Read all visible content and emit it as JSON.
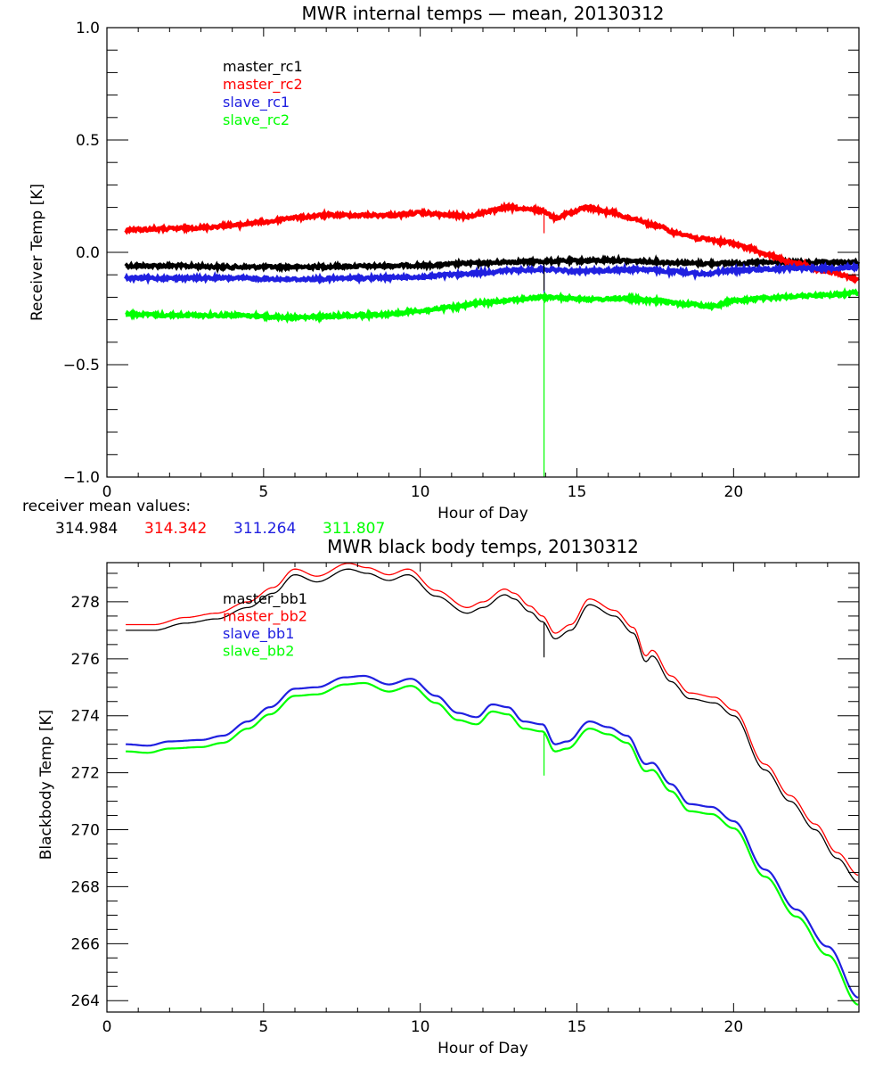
{
  "chart_data": [
    {
      "type": "line",
      "title": "MWR internal temps — mean, 20130312",
      "xlabel": "Hour of Day",
      "ylabel": "Receiver Temp [K]",
      "xlim": [
        0,
        24
      ],
      "ylim": [
        -1.0,
        1.0
      ],
      "xticks": [
        0,
        5,
        10,
        15,
        20
      ],
      "xtick_labels": [
        "0",
        "5",
        "10",
        "15",
        "20"
      ],
      "yticks": [
        1.0,
        0.5,
        0.0,
        -0.5,
        -1.0
      ],
      "ytick_labels": [
        "1.0",
        "0.5",
        "0.0",
        "−0.5",
        "−1.0"
      ],
      "x_minor_step": 1,
      "y_minor_step": 0.1,
      "grid": false,
      "legend_position": "top-left",
      "series": [
        {
          "name": "master_rc1",
          "color": "#000000",
          "noisy": true,
          "x": [
            0.6,
            2,
            4,
            6,
            8,
            10,
            12,
            13,
            14,
            15,
            16,
            17,
            18,
            19,
            20,
            21,
            22,
            23,
            24
          ],
          "y": [
            -0.06,
            -0.06,
            -0.065,
            -0.065,
            -0.062,
            -0.058,
            -0.048,
            -0.042,
            -0.04,
            -0.038,
            -0.035,
            -0.04,
            -0.045,
            -0.05,
            -0.048,
            -0.045,
            -0.045,
            -0.045,
            -0.045
          ]
        },
        {
          "name": "master_rc2",
          "color": "#ff0000",
          "noisy": true,
          "x": [
            0.6,
            2,
            3,
            4,
            5,
            6,
            7,
            8,
            9,
            10,
            11,
            11.5,
            12.3,
            12.8,
            13.5,
            13.9,
            14.3,
            14.8,
            15.3,
            16,
            16.8,
            17.5,
            18.2,
            19,
            19.8,
            20.5,
            21,
            22,
            23,
            24
          ],
          "y": [
            0.1,
            0.105,
            0.11,
            0.12,
            0.135,
            0.155,
            0.165,
            0.165,
            0.165,
            0.175,
            0.165,
            0.16,
            0.185,
            0.2,
            0.19,
            0.185,
            0.155,
            0.175,
            0.2,
            0.18,
            0.15,
            0.12,
            0.085,
            0.06,
            0.045,
            0.02,
            -0.01,
            -0.05,
            -0.085,
            -0.12
          ]
        },
        {
          "name": "slave_rc1",
          "color": "#2020e0",
          "noisy": true,
          "x": [
            0.6,
            2,
            4,
            6,
            8,
            10,
            11,
            12,
            13,
            14,
            15,
            16,
            17,
            18,
            19,
            20,
            21,
            22,
            23,
            24
          ],
          "y": [
            -0.115,
            -0.115,
            -0.115,
            -0.12,
            -0.115,
            -0.11,
            -0.1,
            -0.09,
            -0.08,
            -0.075,
            -0.085,
            -0.08,
            -0.075,
            -0.085,
            -0.095,
            -0.08,
            -0.075,
            -0.07,
            -0.07,
            -0.065
          ]
        },
        {
          "name": "slave_rc2",
          "color": "#00ff00",
          "noisy": true,
          "x": [
            0.6,
            2,
            4,
            6,
            8,
            9,
            10,
            11,
            12,
            13,
            14,
            15,
            15.5,
            16.5,
            17.5,
            18.5,
            19.3,
            20,
            21,
            22,
            23,
            24
          ],
          "y": [
            -0.275,
            -0.28,
            -0.28,
            -0.29,
            -0.28,
            -0.275,
            -0.26,
            -0.245,
            -0.225,
            -0.21,
            -0.2,
            -0.205,
            -0.21,
            -0.205,
            -0.215,
            -0.23,
            -0.24,
            -0.215,
            -0.205,
            -0.195,
            -0.19,
            -0.18
          ]
        }
      ],
      "spikes": [
        {
          "series": "slave_rc2",
          "x": 13.95,
          "to": -1.0,
          "color": "#00ff00"
        },
        {
          "series": "slave_rc1",
          "x": 13.95,
          "to": -0.18,
          "color": "#2020e0"
        },
        {
          "series": "master_rc1",
          "x": 13.95,
          "to": -0.17,
          "color": "#000000"
        },
        {
          "series": "master_rc2",
          "x": 13.95,
          "to": 0.085,
          "color": "#ff0000"
        }
      ],
      "annotation": {
        "label": "receiver mean values:",
        "values": [
          {
            "text": "314.984",
            "color": "#000000"
          },
          {
            "text": "314.342",
            "color": "#ff0000"
          },
          {
            "text": "311.264",
            "color": "#2020e0"
          },
          {
            "text": "311.807",
            "color": "#00ff00"
          }
        ]
      }
    },
    {
      "type": "line",
      "title": "MWR black body temps, 20130312",
      "xlabel": "Hour of Day",
      "ylabel": "Blackbody Temp [K]",
      "xlim": [
        0,
        24
      ],
      "ylim": [
        263.6,
        279.375
      ],
      "xticks": [
        0,
        5,
        10,
        15,
        20
      ],
      "xtick_labels": [
        "0",
        "5",
        "10",
        "15",
        "20"
      ],
      "yticks": [
        264,
        266,
        268,
        270,
        272,
        274,
        276,
        278
      ],
      "ytick_labels": [
        "264",
        "266",
        "268",
        "270",
        "272",
        "274",
        "276",
        "278"
      ],
      "x_minor_step": 1,
      "y_minor_step": 0.5,
      "grid": false,
      "legend_position": "top-left",
      "series": [
        {
          "name": "master_bb1",
          "color": "#000000",
          "x": [
            0.6,
            1.5,
            2.5,
            3.5,
            4.5,
            5.3,
            6,
            6.7,
            7.7,
            8.3,
            9.0,
            9.6,
            10.5,
            11.5,
            12,
            12.7,
            13.0,
            13.5,
            13.9,
            14.3,
            14.8,
            15.4,
            16.2,
            16.8,
            17.2,
            17.4,
            18.0,
            18.6,
            19.4,
            20.0,
            21.0,
            21.8,
            22.6,
            23.3,
            24
          ],
          "y": [
            277.0,
            277.0,
            277.25,
            277.4,
            277.8,
            278.3,
            278.95,
            278.7,
            279.15,
            279.0,
            278.75,
            278.95,
            278.2,
            277.6,
            277.8,
            278.25,
            278.1,
            277.65,
            277.3,
            276.7,
            277.0,
            277.9,
            277.5,
            276.9,
            275.9,
            276.1,
            275.2,
            274.6,
            274.45,
            274.0,
            272.1,
            271.0,
            270.0,
            269.0,
            268.15
          ]
        },
        {
          "name": "master_bb2",
          "color": "#ff0000",
          "x": [
            0.6,
            1.5,
            2.5,
            3.5,
            4.5,
            5.3,
            6,
            6.7,
            7.7,
            8.3,
            9.0,
            9.6,
            10.5,
            11.5,
            12,
            12.7,
            13.0,
            13.5,
            13.9,
            14.3,
            14.8,
            15.4,
            16.2,
            16.8,
            17.2,
            17.4,
            18.0,
            18.6,
            19.4,
            20.0,
            21.0,
            21.8,
            22.6,
            23.3,
            24
          ],
          "y": [
            277.2,
            277.2,
            277.45,
            277.6,
            278.0,
            278.5,
            279.15,
            278.9,
            279.35,
            279.2,
            278.95,
            279.15,
            278.4,
            277.8,
            278.0,
            278.45,
            278.3,
            277.85,
            277.5,
            276.9,
            277.2,
            278.1,
            277.7,
            277.1,
            276.1,
            276.3,
            275.4,
            274.8,
            274.65,
            274.2,
            272.3,
            271.2,
            270.2,
            269.2,
            268.4
          ]
        },
        {
          "name": "slave_bb1",
          "color": "#2020e0",
          "x": [
            0.6,
            1.3,
            2.0,
            3.0,
            3.7,
            4.5,
            5.2,
            6,
            6.7,
            7.6,
            8.2,
            9.0,
            9.7,
            10.5,
            11.2,
            11.8,
            12.3,
            12.8,
            13.3,
            13.9,
            14.3,
            14.7,
            15.4,
            16.0,
            16.6,
            17.2,
            17.4,
            18.0,
            18.6,
            19.3,
            20.0,
            21.0,
            22.0,
            23.0,
            24
          ],
          "y": [
            273.0,
            272.95,
            273.1,
            273.15,
            273.3,
            273.8,
            274.3,
            274.95,
            275.0,
            275.35,
            275.4,
            275.1,
            275.3,
            274.7,
            274.1,
            273.95,
            274.4,
            274.3,
            273.8,
            273.7,
            273.0,
            273.1,
            273.8,
            273.6,
            273.3,
            272.3,
            272.35,
            271.6,
            270.9,
            270.8,
            270.3,
            268.6,
            267.2,
            265.9,
            264.1
          ]
        },
        {
          "name": "slave_bb2",
          "color": "#00ff00",
          "x": [
            0.6,
            1.3,
            2.0,
            3.0,
            3.7,
            4.5,
            5.2,
            6,
            6.7,
            7.6,
            8.2,
            9.0,
            9.7,
            10.5,
            11.2,
            11.8,
            12.3,
            12.8,
            13.3,
            13.9,
            14.3,
            14.7,
            15.4,
            16.0,
            16.6,
            17.2,
            17.4,
            18.0,
            18.6,
            19.3,
            20.0,
            21.0,
            22.0,
            23.0,
            24
          ],
          "y": [
            272.75,
            272.7,
            272.85,
            272.9,
            273.05,
            273.55,
            274.05,
            274.7,
            274.75,
            275.1,
            275.15,
            274.85,
            275.05,
            274.45,
            273.85,
            273.7,
            274.15,
            274.05,
            273.55,
            273.45,
            272.75,
            272.85,
            273.55,
            273.35,
            273.05,
            272.05,
            272.1,
            271.35,
            270.65,
            270.55,
            270.05,
            268.35,
            266.95,
            265.6,
            263.85
          ]
        }
      ],
      "spikes": [
        {
          "series": "master_bb1",
          "x": 13.95,
          "to": 276.05,
          "color": "#000000"
        },
        {
          "series": "slave_bb2",
          "x": 13.95,
          "to": 271.9,
          "color": "#00ff00"
        }
      ]
    }
  ]
}
